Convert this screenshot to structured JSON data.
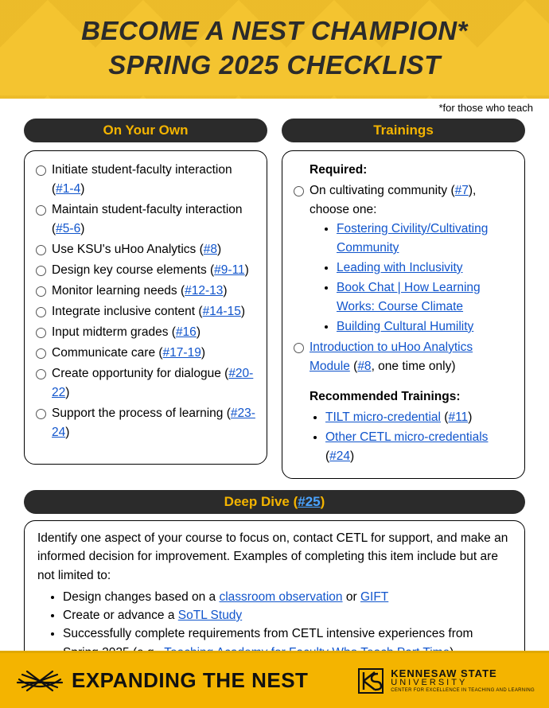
{
  "colors": {
    "gold": "#f4c430",
    "gold_dark": "#e0a800",
    "bar_bg": "#2b2b2b",
    "bar_text": "#f4b400",
    "link": "#1155cc",
    "link_on_dark": "#4aa3ff"
  },
  "header": {
    "title_line1": "BECOME A NEST CHAMPION*",
    "title_line2": "SPRING 2025 CHECKLIST",
    "subnote": "*for those who teach"
  },
  "own": {
    "heading": "On Your Own",
    "items": [
      {
        "text": "Initiate student-faculty interaction (",
        "link": "#1-4",
        "after": ")"
      },
      {
        "text": "Maintain student-faculty interaction (",
        "link": "#5-6",
        "after": ")"
      },
      {
        "text": "Use KSU's uHoo Analytics (",
        "link": "#8",
        "after": ")"
      },
      {
        "text": "Design key course elements (",
        "link": "#9-11",
        "after": ")"
      },
      {
        "text": "Monitor learning needs (",
        "link": "#12-13",
        "after": ")"
      },
      {
        "text": "Integrate inclusive content (",
        "link": "#14-15",
        "after": ")"
      },
      {
        "text": "Input midterm grades (",
        "link": "#16",
        "after": ")"
      },
      {
        "text": "Communicate care (",
        "link": "#17-19",
        "after": ")"
      },
      {
        "text": "Create opportunity for dialogue (",
        "link": "#20-22",
        "after": ")"
      },
      {
        "text": "Support the process of learning (",
        "link": "#23-24",
        "after": ")"
      }
    ]
  },
  "trainings": {
    "heading": "Trainings",
    "required_label": "Required:",
    "cultivating_pre": "On cultivating community (",
    "cultivating_link": "#7",
    "cultivating_post": "), choose one:",
    "choices": [
      "Fostering Civility/Cultivating Community",
      "Leading with Inclusivity",
      "Book Chat | How Learning Works: Course Climate",
      "Building Cultural Humility"
    ],
    "uhoo_link": "Introduction to uHoo Analytics Module",
    "uhoo_paren_pre": " (",
    "uhoo_num": "#8",
    "uhoo_paren_post": ", one time only)",
    "recommended_label": "Recommended Trainings:",
    "rec1_link": "TILT micro-credential",
    "rec1_num": "#11",
    "rec2_link": "Other CETL micro-credentials",
    "rec2_num": "#24"
  },
  "deep": {
    "heading_pre": "Deep Dive (",
    "heading_link": "#25",
    "heading_post": ")",
    "intro": "Identify one aspect of your course to focus on, contact CETL for support, and make an informed decision for improvement. Examples of completing this item include but are not limited to:",
    "b1_pre": "Design changes based on a ",
    "b1_link1": "classroom observation",
    "b1_mid": " or ",
    "b1_link2": "GIFT",
    "b2_pre": "Create or advance a ",
    "b2_link": "SoTL Study",
    "b3_pre": "Successfully complete requirements from CETL intensive experiences from Spring 2025 (e.g., ",
    "b3_link": "Teaching Academy for Faculty Who Teach Part Time",
    "b3_post": ")."
  },
  "footer": {
    "expand": "EXPANDING THE NEST",
    "ksu1": "KENNESAW STATE",
    "ksu2": "UNIVERSITY",
    "ksu3": "CENTER FOR EXCELLENCE IN TEACHING AND LEARNING"
  }
}
